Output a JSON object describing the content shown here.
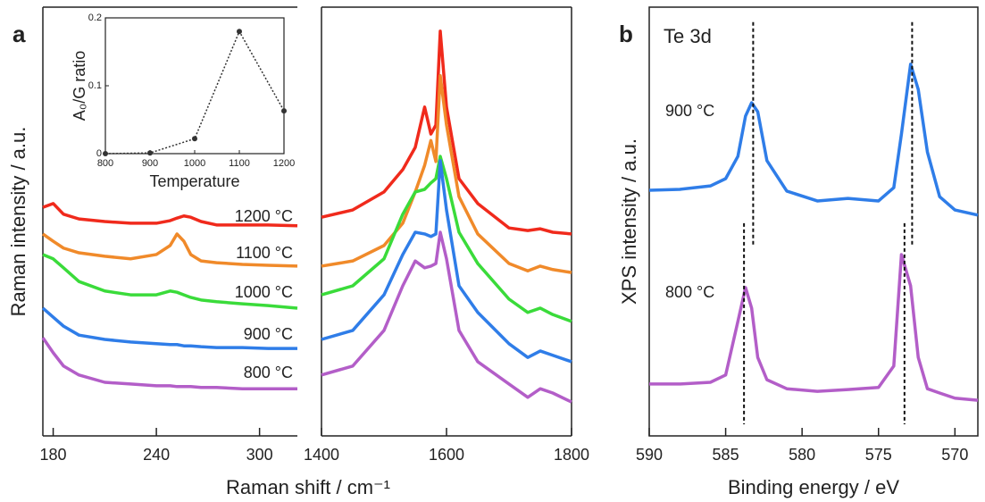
{
  "chart_data": [
    {
      "type": "broken-line",
      "panel_label": "a",
      "xlabel": "Raman shift / cm⁻¹",
      "ylabel": "Raman intensity / a.u.",
      "ylim": [
        0,
        100
      ],
      "segments": [
        {
          "xlim": [
            174,
            322
          ],
          "xticks": [
            180,
            240,
            300
          ],
          "x": [
            174,
            180,
            186,
            195,
            210,
            225,
            240,
            248,
            252,
            256,
            260,
            266,
            275,
            290,
            305,
            322
          ]
        },
        {
          "xlim": [
            1400,
            1800
          ],
          "xticks": [
            1400,
            1600,
            1800
          ],
          "x": [
            1400,
            1450,
            1500,
            1530,
            1550,
            1565,
            1575,
            1583,
            1590,
            1600,
            1620,
            1650,
            1700,
            1730,
            1750,
            1770,
            1800
          ]
        }
      ],
      "series": [
        {
          "name": "1200 °C",
          "color": "#f02a1c",
          "values": [
            [
              53.3,
              54.2,
              51.7,
              50.6,
              50,
              49.6,
              49.6,
              50.2,
              50.8,
              51.3,
              51.0,
              50,
              49.2,
              49.2,
              49.2,
              49.0
            ],
            [
              51,
              52.7,
              56.9,
              62.1,
              67.3,
              76.7,
              70.4,
              72.5,
              94.4,
              76.7,
              60,
              54.2,
              48.5,
              47.9,
              48.3,
              47.5,
              47.1
            ]
          ]
        },
        {
          "name": "1100 °C",
          "color": "#f08a2a",
          "values": [
            [
              47.1,
              45.4,
              43.8,
              42.7,
              41.9,
              41.3,
              42.3,
              44.4,
              47.1,
              45.4,
              42.3,
              40.8,
              40.4,
              40,
              39.8,
              39.6
            ],
            [
              39.6,
              40.8,
              44.4,
              49.6,
              56.9,
              63.1,
              68.9,
              64,
              84,
              72.5,
              55.8,
              47.1,
              40.2,
              38.5,
              39.6,
              38.8,
              38.1
            ]
          ]
        },
        {
          "name": "1000 °C",
          "color": "#3adb3a",
          "values": [
            [
              42.3,
              41.3,
              39.2,
              36,
              33.8,
              32.9,
              32.9,
              33.8,
              33.5,
              32.9,
              32.3,
              31.7,
              31.3,
              30.8,
              30.4,
              29.8
            ],
            [
              32.9,
              35,
              41.3,
              51.7,
              56.9,
              57.5,
              59,
              60,
              65.2,
              60,
              47.5,
              40.2,
              31.9,
              28.8,
              29.8,
              28.3,
              26.7
            ]
          ]
        },
        {
          "name": "900 °C",
          "color": "#2f7de8",
          "values": [
            [
              29.8,
              27.7,
              25.6,
              23.5,
              22.5,
              21.9,
              21.5,
              21.3,
              21.3,
              21,
              21,
              20.8,
              20.6,
              20.6,
              20.4,
              20.4
            ],
            [
              22.5,
              24.6,
              32.9,
              42.3,
              47.5,
              47.1,
              46.5,
              47.1,
              64.2,
              52.7,
              35,
              28.8,
              21.5,
              18.3,
              19.8,
              18.8,
              17.3
            ]
          ]
        },
        {
          "name": "800 °C",
          "color": "#b35ec8",
          "values": [
            [
              22.9,
              19.4,
              16.3,
              14.2,
              12.5,
              12.1,
              11.7,
              11.7,
              11.5,
              11.5,
              11.5,
              11.3,
              11.3,
              11,
              11,
              11
            ],
            [
              14.2,
              16.3,
              24.6,
              35,
              40.8,
              39.2,
              39.6,
              40.2,
              47.5,
              41.3,
              24.6,
              17.3,
              12.1,
              9,
              11,
              10,
              7.9
            ]
          ]
        }
      ]
    },
    {
      "type": "line",
      "xlabel": "Temperature",
      "ylabel": "A₀/G ratio",
      "xlim": [
        800,
        1200
      ],
      "xticks": [
        800,
        900,
        1000,
        1100,
        1200
      ],
      "ylim": [
        0,
        0.2
      ],
      "yticks": [
        0,
        0.1,
        0.2
      ],
      "x": [
        800,
        900,
        1000,
        1100,
        1200
      ],
      "values": [
        0,
        0.001,
        0.022,
        0.18,
        0.063
      ],
      "color": "#333333"
    },
    {
      "type": "line",
      "panel_label": "b",
      "annotation": "Te 3d",
      "xlabel": "Binding energy / eV",
      "ylabel": "XPS intensity / a.u.",
      "xlim": [
        590,
        568.5
      ],
      "xticks": [
        590,
        585,
        580,
        575,
        570
      ],
      "ylim": [
        0,
        100
      ],
      "x": [
        590,
        588,
        586,
        585,
        584.2,
        583.7,
        583.3,
        582.9,
        582.3,
        581,
        579,
        577,
        575,
        574,
        573.5,
        572.9,
        572.4,
        571.8,
        571,
        570,
        568.5
      ],
      "series": [
        {
          "name": "900 °C",
          "color": "#2f7de8",
          "values": [
            57.3,
            57.5,
            58.3,
            60,
            65.2,
            74.6,
            77.7,
            75.6,
            64.2,
            57.1,
            54.8,
            55.4,
            54.8,
            57.9,
            70.4,
            86.7,
            80.8,
            66.2,
            55.8,
            52.7,
            51.5
          ],
          "peak_lines": [
            {
              "x": 583.2,
              "y": [
                96.5,
                44.4
              ]
            },
            {
              "x": 572.8,
              "y": [
                96.5,
                44.4
              ]
            }
          ]
        },
        {
          "name": "800 °C",
          "color": "#b35ec8",
          "values": [
            12.1,
            12.1,
            12.5,
            14.2,
            26.7,
            34.6,
            29.8,
            18.3,
            13.1,
            11,
            10.4,
            10.8,
            11.3,
            16.3,
            42.3,
            35.0,
            18.3,
            11,
            10,
            8.8,
            8.3
          ],
          "peak_lines": [
            {
              "x": 583.8,
              "y": [
                49.6,
                2.7
              ]
            },
            {
              "x": 573.3,
              "y": [
                49.6,
                2.7
              ]
            }
          ]
        }
      ]
    }
  ]
}
